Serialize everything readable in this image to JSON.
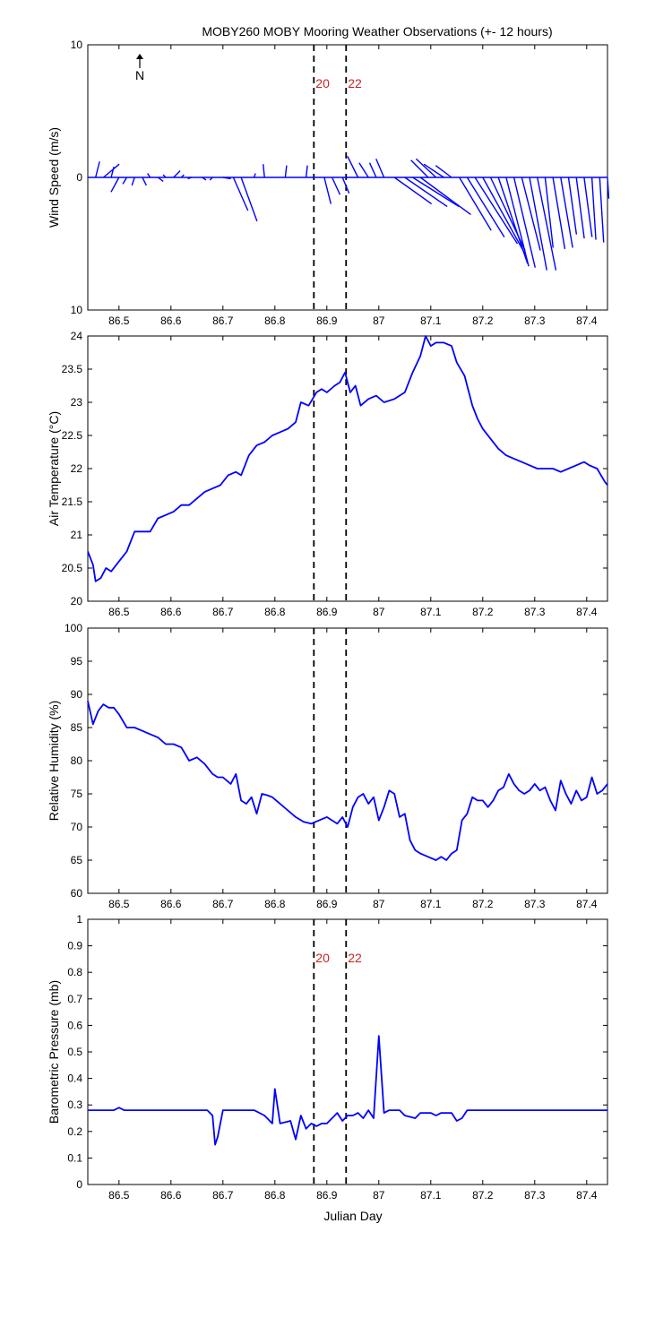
{
  "figure_title": "MOBY260 MOBY Mooring Weather Observations (+- 12 hours)",
  "shared_xlabel": "Julian Day",
  "colors": {
    "line": "#0000ff",
    "marker_text": "#cc2222",
    "axis": "#000000"
  },
  "north_indicator": {
    "label": "N",
    "icon": "north-arrow-icon"
  },
  "marker_lines": [
    {
      "x": 86.875,
      "label": "20"
    },
    {
      "x": 86.937,
      "label": "22"
    }
  ],
  "chart_data": [
    {
      "type": "line",
      "subtype": "wind-vector-stick",
      "title": "MOBY260 MOBY Mooring Weather Observations (+- 12 hours)",
      "xlabel": "",
      "ylabel": "Wind Speed (m/s)",
      "xlim": [
        86.44,
        87.44
      ],
      "ylim": [
        -10,
        10
      ],
      "x_ticks": [
        "86.5",
        "86.6",
        "86.7",
        "86.8",
        "86.9",
        "87",
        "87.1",
        "87.2",
        "87.3",
        "87.4"
      ],
      "y_ticks": [
        "10",
        "0",
        "10"
      ],
      "marker_labels_shown": true,
      "grid": false,
      "series": [
        {
          "x": [
            86.455,
            86.47,
            86.485,
            86.5,
            86.515,
            86.53,
            86.545,
            86.56,
            86.575,
            86.59,
            86.605,
            86.62,
            86.64,
            86.66,
            86.68,
            86.7,
            86.72,
            86.735,
            86.76,
            86.78,
            86.82,
            86.86,
            86.895,
            86.91,
            86.93,
            86.96,
            86.98,
            86.995,
            87.01,
            87.03,
            87.05,
            87.065,
            87.08,
            87.095,
            87.11,
            87.125,
            87.14,
            87.155,
            87.17,
            87.185,
            87.2,
            87.215,
            87.23,
            87.245,
            87.26,
            87.275,
            87.29,
            87.305,
            87.32,
            87.335,
            87.35,
            87.365,
            87.38,
            87.395,
            87.41,
            87.425,
            87.44
          ],
          "u": [
            0.3,
            1.2,
            0.2,
            -0.6,
            -0.3,
            -0.2,
            0.3,
            -0.2,
            0.4,
            -0.2,
            0.5,
            0.2,
            -0.3,
            0.3,
            -0.2,
            0.6,
            1.1,
            1.2,
            0.1,
            -0.1,
            0.1,
            0.1,
            0.5,
            0.6,
            0.5,
            -0.8,
            -0.7,
            -0.5,
            -0.6,
            2.8,
            3.2,
            3.5,
            3.8,
            -1.3,
            -1.5,
            -1.5,
            -1.2,
            2.4,
            2.8,
            3.2,
            3.2,
            2.6,
            2.2,
            1.7,
            1.6,
            1.4,
            1.3,
            1.4,
            0.6,
            0.9,
            0.9,
            0.6,
            0.6,
            0.6,
            0.3,
            0.3,
            0.1
          ],
          "v": [
            1.2,
            1.0,
            0.8,
            -1.1,
            -0.5,
            -0.6,
            -0.6,
            0.3,
            -0.3,
            0.2,
            0.5,
            0.2,
            -0.1,
            -0.2,
            -0.2,
            -0.1,
            -2.5,
            -3.3,
            0.3,
            1.0,
            0.9,
            0.9,
            -2.0,
            -1.3,
            -1.2,
            1.6,
            1.1,
            1.1,
            1.4,
            -2.0,
            -2.2,
            -2.2,
            -2.8,
            1.3,
            1.4,
            1.0,
            0.9,
            -4.0,
            -4.5,
            -5.0,
            -5.8,
            -5.5,
            -6.5,
            -6.7,
            -6.8,
            -5.5,
            -7.0,
            -7.0,
            -5.3,
            -5.4,
            -5.3,
            -4.3,
            -4.6,
            -4.5,
            -4.7,
            -4.9,
            -1.6
          ]
        }
      ]
    },
    {
      "type": "line",
      "title": "",
      "xlabel": "",
      "ylabel": "Air Temperature (°C)",
      "xlim": [
        86.44,
        87.44
      ],
      "ylim": [
        20,
        24
      ],
      "x_ticks": [
        "86.5",
        "86.6",
        "86.7",
        "86.8",
        "86.9",
        "87",
        "87.1",
        "87.2",
        "87.3",
        "87.4"
      ],
      "y_ticks": [
        "20",
        "20.5",
        "21",
        "21.5",
        "22",
        "22.5",
        "23",
        "23.5",
        "24"
      ],
      "grid": false,
      "series": [
        {
          "x": [
            86.44,
            86.45,
            86.455,
            86.465,
            86.475,
            86.485,
            86.5,
            86.515,
            86.53,
            86.545,
            86.56,
            86.575,
            86.59,
            86.605,
            86.62,
            86.635,
            86.65,
            86.665,
            86.68,
            86.695,
            86.71,
            86.725,
            86.735,
            86.75,
            86.765,
            86.78,
            86.795,
            86.81,
            86.825,
            86.84,
            86.85,
            86.865,
            86.88,
            86.89,
            86.9,
            86.915,
            86.925,
            86.935,
            86.945,
            86.955,
            86.965,
            86.98,
            86.995,
            87.01,
            87.03,
            87.05,
            87.065,
            87.08,
            87.09,
            87.1,
            87.11,
            87.125,
            87.14,
            87.15,
            87.165,
            87.18,
            87.19,
            87.2,
            87.215,
            87.23,
            87.245,
            87.26,
            87.275,
            87.29,
            87.305,
            87.32,
            87.335,
            87.35,
            87.365,
            87.38,
            87.395,
            87.405,
            87.42,
            87.435,
            87.44
          ],
          "y": [
            20.75,
            20.55,
            20.3,
            20.35,
            20.5,
            20.45,
            20.6,
            20.75,
            21.05,
            21.05,
            21.05,
            21.25,
            21.3,
            21.35,
            21.45,
            21.45,
            21.55,
            21.65,
            21.7,
            21.75,
            21.9,
            21.95,
            21.9,
            22.2,
            22.35,
            22.4,
            22.5,
            22.55,
            22.6,
            22.7,
            23.0,
            22.95,
            23.15,
            23.2,
            23.15,
            23.25,
            23.3,
            23.45,
            23.15,
            23.25,
            22.95,
            23.05,
            23.1,
            23.0,
            23.05,
            23.15,
            23.45,
            23.7,
            24.0,
            23.85,
            23.9,
            23.9,
            23.85,
            23.6,
            23.4,
            22.95,
            22.75,
            22.6,
            22.45,
            22.3,
            22.2,
            22.15,
            22.1,
            22.05,
            22.0,
            22.0,
            22.0,
            21.95,
            22.0,
            22.05,
            22.1,
            22.05,
            22.0,
            21.8,
            21.75
          ]
        }
      ]
    },
    {
      "type": "line",
      "title": "",
      "xlabel": "",
      "ylabel": "Relative Humidity (%)",
      "xlim": [
        86.44,
        87.44
      ],
      "ylim": [
        60,
        100
      ],
      "x_ticks": [
        "86.5",
        "86.6",
        "86.7",
        "86.8",
        "86.9",
        "87",
        "87.1",
        "87.2",
        "87.3",
        "87.4"
      ],
      "y_ticks": [
        "60",
        "65",
        "70",
        "75",
        "80",
        "85",
        "90",
        "95",
        "100"
      ],
      "grid": false,
      "series": [
        {
          "x": [
            86.44,
            86.45,
            86.46,
            86.47,
            86.48,
            86.49,
            86.5,
            86.515,
            86.53,
            86.545,
            86.56,
            86.575,
            86.59,
            86.605,
            86.62,
            86.635,
            86.65,
            86.665,
            86.68,
            86.69,
            86.7,
            86.715,
            86.725,
            86.735,
            86.745,
            86.755,
            86.765,
            86.775,
            86.785,
            86.795,
            86.81,
            86.825,
            86.84,
            86.855,
            86.87,
            86.885,
            86.9,
            86.91,
            86.92,
            86.93,
            86.94,
            86.95,
            86.96,
            86.97,
            86.98,
            86.99,
            87.0,
            87.01,
            87.02,
            87.03,
            87.04,
            87.05,
            87.06,
            87.07,
            87.08,
            87.095,
            87.11,
            87.12,
            87.13,
            87.14,
            87.15,
            87.16,
            87.17,
            87.18,
            87.19,
            87.2,
            87.21,
            87.22,
            87.23,
            87.24,
            87.25,
            87.26,
            87.27,
            87.28,
            87.29,
            87.3,
            87.31,
            87.32,
            87.33,
            87.34,
            87.35,
            87.36,
            87.37,
            87.38,
            87.39,
            87.4,
            87.41,
            87.42,
            87.43,
            87.44
          ],
          "y": [
            89.0,
            85.5,
            87.5,
            88.5,
            88.0,
            88.0,
            87.0,
            85.0,
            85.0,
            84.5,
            84.0,
            83.5,
            82.5,
            82.5,
            82.0,
            80.0,
            80.5,
            79.5,
            78.0,
            77.5,
            77.5,
            76.5,
            78.0,
            74.0,
            73.5,
            74.5,
            72.0,
            75.0,
            74.8,
            74.5,
            73.5,
            72.5,
            71.5,
            70.8,
            70.5,
            71.0,
            71.5,
            71.0,
            70.5,
            71.5,
            70.0,
            73.0,
            74.5,
            75.0,
            73.5,
            74.5,
            71.0,
            73.0,
            75.5,
            75.0,
            71.5,
            72.0,
            68.0,
            66.5,
            66.0,
            65.5,
            65.0,
            65.5,
            65.0,
            66.0,
            66.5,
            71.0,
            72.0,
            74.5,
            74.0,
            74.0,
            73.0,
            74.0,
            75.5,
            76.0,
            78.0,
            76.5,
            75.5,
            75.0,
            75.5,
            76.5,
            75.5,
            76.0,
            74.0,
            72.5,
            77.0,
            75.0,
            73.5,
            75.5,
            74.0,
            74.5,
            77.5,
            75.0,
            75.5,
            76.5
          ]
        }
      ]
    },
    {
      "type": "line",
      "title": "",
      "xlabel": "Julian Day",
      "ylabel": "Barometric Pressure (mb)",
      "xlim": [
        86.44,
        87.44
      ],
      "ylim": [
        0,
        1
      ],
      "x_ticks": [
        "86.5",
        "86.6",
        "86.7",
        "86.8",
        "86.9",
        "87",
        "87.1",
        "87.2",
        "87.3",
        "87.4"
      ],
      "y_ticks": [
        "0",
        "0.1",
        "0.2",
        "0.3",
        "0.4",
        "0.5",
        "0.6",
        "0.7",
        "0.8",
        "0.9",
        "1"
      ],
      "marker_labels_shown": true,
      "grid": false,
      "series": [
        {
          "x": [
            86.44,
            86.48,
            86.49,
            86.5,
            86.51,
            86.55,
            86.6,
            86.65,
            86.67,
            86.68,
            86.685,
            86.69,
            86.7,
            86.71,
            86.72,
            86.76,
            86.78,
            86.795,
            86.8,
            86.81,
            86.83,
            86.84,
            86.85,
            86.86,
            86.87,
            86.88,
            86.89,
            86.9,
            86.91,
            86.92,
            86.93,
            86.94,
            86.95,
            86.96,
            86.97,
            86.98,
            86.99,
            87.0,
            87.01,
            87.02,
            87.03,
            87.04,
            87.05,
            87.07,
            87.08,
            87.09,
            87.1,
            87.11,
            87.12,
            87.13,
            87.14,
            87.15,
            87.16,
            87.17,
            87.18,
            87.19,
            87.2,
            87.25,
            87.3,
            87.35,
            87.4,
            87.44
          ],
          "y": [
            0.28,
            0.28,
            0.28,
            0.29,
            0.28,
            0.28,
            0.28,
            0.28,
            0.28,
            0.26,
            0.15,
            0.18,
            0.28,
            0.28,
            0.28,
            0.28,
            0.26,
            0.23,
            0.36,
            0.23,
            0.24,
            0.17,
            0.26,
            0.21,
            0.23,
            0.22,
            0.23,
            0.23,
            0.25,
            0.27,
            0.24,
            0.26,
            0.26,
            0.27,
            0.25,
            0.28,
            0.25,
            0.56,
            0.27,
            0.28,
            0.28,
            0.28,
            0.26,
            0.25,
            0.27,
            0.27,
            0.27,
            0.26,
            0.27,
            0.27,
            0.27,
            0.24,
            0.25,
            0.28,
            0.28,
            0.28,
            0.28,
            0.28,
            0.28,
            0.28,
            0.28,
            0.28
          ]
        }
      ]
    }
  ]
}
